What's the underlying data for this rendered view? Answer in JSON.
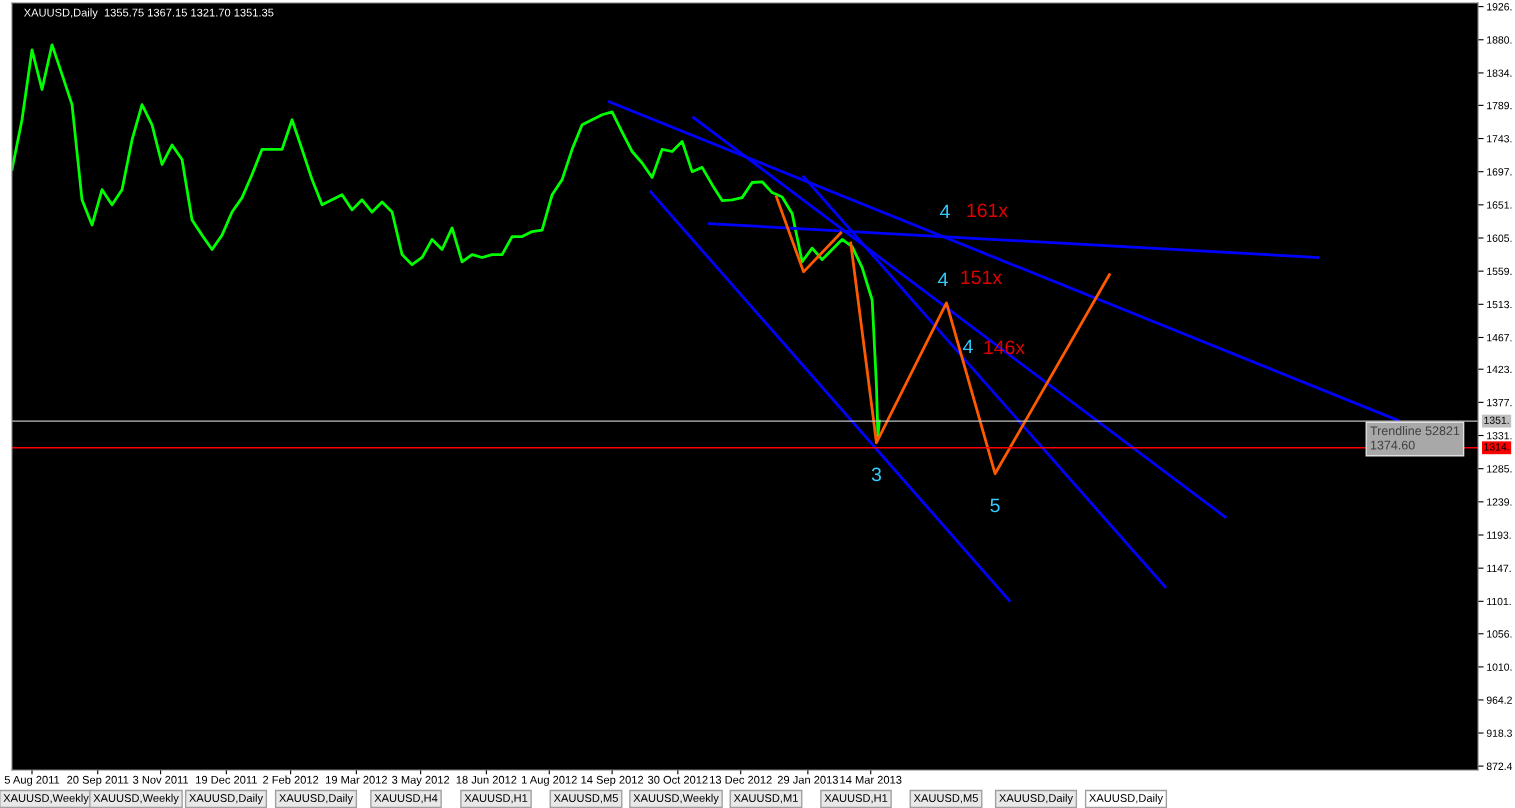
{
  "chart_data": {
    "type": "line",
    "title": "XAUUSD,Daily  1355.75 1367.15 1321.70 1351.35",
    "xlim": [
      "2011-07-22",
      "2014-05-13"
    ],
    "xticks": [
      {
        "value": "2011-08-05",
        "label": "5 Aug 2011"
      },
      {
        "value": "2011-09-20",
        "label": "20 Sep 2011"
      },
      {
        "value": "2011-11-03",
        "label": "3 Nov 2011"
      },
      {
        "value": "2011-12-19",
        "label": "19 Dec 2011"
      },
      {
        "value": "2012-02-02",
        "label": "2 Feb 2012"
      },
      {
        "value": "2012-03-19",
        "label": "19 Mar 2012"
      },
      {
        "value": "2012-05-03",
        "label": "3 May 2012"
      },
      {
        "value": "2012-06-18",
        "label": "18 Jun 2012"
      },
      {
        "value": "2012-08-01",
        "label": "1 Aug 2012"
      },
      {
        "value": "2012-09-14",
        "label": "14 Sep 2012"
      },
      {
        "value": "2012-10-30",
        "label": "30 Oct 2012"
      },
      {
        "value": "2012-12-13",
        "label": "13 Dec 2012"
      },
      {
        "value": "2013-01-29",
        "label": "29 Jan 2013"
      },
      {
        "value": "2013-03-14",
        "label": "14 Mar 2013"
      }
    ],
    "ylim": [
      867,
      1931
    ],
    "yticks": [
      {
        "value": 1926,
        "label": "1926."
      },
      {
        "value": 1880,
        "label": "1880."
      },
      {
        "value": 1834,
        "label": "1834."
      },
      {
        "value": 1789,
        "label": "1789."
      },
      {
        "value": 1743,
        "label": "1743."
      },
      {
        "value": 1697,
        "label": "1697."
      },
      {
        "value": 1651,
        "label": "1651."
      },
      {
        "value": 1605,
        "label": "1605."
      },
      {
        "value": 1559,
        "label": "1559."
      },
      {
        "value": 1513,
        "label": "1513."
      },
      {
        "value": 1467,
        "label": "1467."
      },
      {
        "value": 1423,
        "label": "1423."
      },
      {
        "value": 1377,
        "label": "1377."
      },
      {
        "value": 1331,
        "label": "1331."
      },
      {
        "value": 1285,
        "label": "1285."
      },
      {
        "value": 1239,
        "label": "1239."
      },
      {
        "value": 1193,
        "label": "1193."
      },
      {
        "value": 1147,
        "label": "1147."
      },
      {
        "value": 1101,
        "label": "1101."
      },
      {
        "value": 1056,
        "label": "1056."
      },
      {
        "value": 1010,
        "label": "1010."
      },
      {
        "value": 964.2,
        "label": "964.2"
      },
      {
        "value": 918.3,
        "label": "918.3"
      },
      {
        "value": 872.4,
        "label": "872.4"
      }
    ],
    "grid": false,
    "legend": false,
    "line_style": "solid",
    "series": [
      {
        "color": "#00ff00",
        "x": [
          "2011-07-22",
          "2011-07-29",
          "2011-08-05",
          "2011-08-12",
          "2011-08-19",
          "2011-08-26",
          "2011-09-02",
          "2011-09-09",
          "2011-09-16",
          "2011-09-23",
          "2011-09-30",
          "2011-10-07",
          "2011-10-14",
          "2011-10-21",
          "2011-10-28",
          "2011-11-04",
          "2011-11-11",
          "2011-11-18",
          "2011-11-25",
          "2011-12-02",
          "2011-12-09",
          "2011-12-16",
          "2011-12-23",
          "2011-12-30",
          "2012-01-06",
          "2012-01-13",
          "2012-01-20",
          "2012-01-27",
          "2012-02-03",
          "2012-02-10",
          "2012-02-17",
          "2012-02-24",
          "2012-03-02",
          "2012-03-09",
          "2012-03-16",
          "2012-03-23",
          "2012-03-30",
          "2012-04-06",
          "2012-04-13",
          "2012-04-20",
          "2012-04-27",
          "2012-05-04",
          "2012-05-11",
          "2012-05-18",
          "2012-05-25",
          "2012-06-01",
          "2012-06-08",
          "2012-06-15",
          "2012-06-22",
          "2012-06-29",
          "2012-07-06",
          "2012-07-13",
          "2012-07-20",
          "2012-07-27",
          "2012-08-03",
          "2012-08-10",
          "2012-08-17",
          "2012-08-24",
          "2012-08-31",
          "2012-09-07",
          "2012-09-14",
          "2012-09-21",
          "2012-09-28",
          "2012-10-05",
          "2012-10-12",
          "2012-10-19",
          "2012-10-26",
          "2012-11-02",
          "2012-11-09",
          "2012-11-16",
          "2012-11-23",
          "2012-11-30",
          "2012-12-07",
          "2012-12-14",
          "2012-12-21",
          "2012-12-28",
          "2013-01-04",
          "2013-01-11",
          "2013-01-18",
          "2013-01-25",
          "2013-02-01",
          "2013-02-08",
          "2013-02-15",
          "2013-02-22",
          "2013-03-01",
          "2013-03-08",
          "2013-03-15",
          "2013-03-18",
          "2013-03-19",
          "2013-03-20"
        ],
        "values": [
          1700,
          1769,
          1866,
          1811,
          1873,
          1832,
          1790,
          1658,
          1623,
          1672,
          1651,
          1672,
          1741,
          1790,
          1762,
          1707,
          1734,
          1714,
          1630,
          1609,
          1589,
          1609,
          1641,
          1661,
          1693,
          1728,
          1728,
          1728,
          1769,
          1728,
          1686,
          1651,
          1658,
          1665,
          1644,
          1658,
          1641,
          1655,
          1641,
          1582,
          1568,
          1578,
          1603,
          1589,
          1619,
          1572,
          1582,
          1578,
          1582,
          1582,
          1607,
          1607,
          1614,
          1616,
          1665,
          1686,
          1728,
          1762,
          1769,
          1776,
          1780,
          1752,
          1725,
          1709,
          1689,
          1728,
          1725,
          1739,
          1697,
          1703,
          1679,
          1657,
          1658,
          1661,
          1682,
          1683,
          1668,
          1662,
          1639,
          1572,
          1591,
          1575,
          1589,
          1603,
          1593,
          1564,
          1519,
          1400,
          1330,
          1351
        ]
      },
      {
        "color": "#0000ff",
        "x": [
          "2012-09-12",
          "2014-03-18"
        ],
        "values": [
          1794,
          1352
        ]
      },
      {
        "color": "#0000ff",
        "x": [
          "2012-11-10",
          "2013-11-17"
        ],
        "values": [
          1772,
          1218
        ]
      },
      {
        "color": "#0000ff",
        "x": [
          "2013-01-26",
          "2013-10-06"
        ],
        "values": [
          1690,
          1121
        ]
      },
      {
        "color": "#0000ff",
        "x": [
          "2012-10-11",
          "2013-06-19"
        ],
        "values": [
          1669,
          1102
        ]
      },
      {
        "color": "#0000ff",
        "x": [
          "2012-11-21",
          "2014-01-21"
        ],
        "values": [
          1625,
          1578
        ]
      },
      {
        "color": "#ff5a00",
        "x": [
          "2013-01-07",
          "2013-01-26",
          "2013-02-21"
        ],
        "values": [
          1662,
          1558,
          1612
        ]
      },
      {
        "color": "#ff5a00",
        "x": [
          "2013-02-28",
          "2013-03-18",
          "2013-05-06",
          "2013-06-09",
          "2013-08-28"
        ],
        "values": [
          1598,
          1321,
          1515,
          1278,
          1554
        ]
      }
    ],
    "ref_lines": [
      {
        "axis": "y",
        "value": 1351,
        "label": "1351.",
        "color": "#c0c0c0"
      },
      {
        "axis": "y",
        "value": 1314,
        "label": "1314.",
        "color": "#ff0000"
      }
    ],
    "annotations": [
      {
        "text": "3",
        "x": "2013-03-18",
        "y": 1321
      },
      {
        "text": "5",
        "x": "2013-06-09",
        "y": 1278
      },
      "4",
      "161x",
      "4",
      "151x",
      "4",
      "146x",
      "Trendline 52821\n1374.60",
      "XAUUSD,Weekly",
      "XAUUSD,Weekly",
      "XAUUSD,Daily",
      "XAUUSD,Daily",
      "XAUUSD,H4",
      "XAUUSD,H1",
      "XAUUSD,M5",
      "XAUUSD,Weekly",
      "XAUUSD,M1",
      "XAUUSD,H1",
      "XAUUSD,M5",
      "XAUUSD,Daily",
      "XAUUSD,Daily"
    ]
  }
}
